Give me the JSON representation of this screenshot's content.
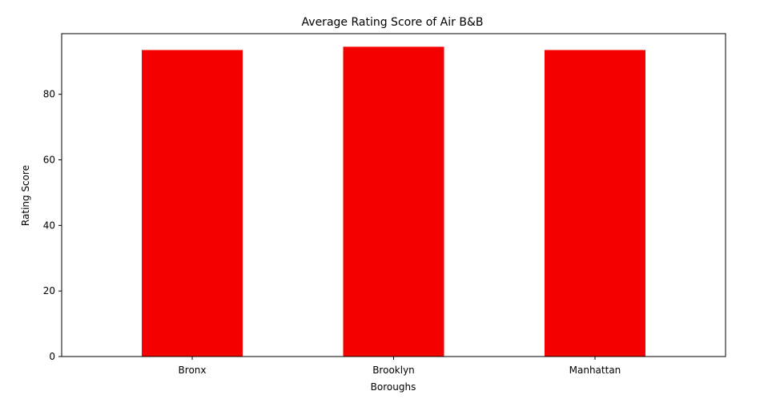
{
  "chart_data": {
    "type": "bar",
    "title": "Average Rating Score of Air B&B",
    "xlabel": "Boroughs",
    "ylabel": "Rating Score",
    "categories": [
      "Bronx",
      "Brooklyn",
      "Manhattan"
    ],
    "values": [
      93.5,
      94.5,
      93.5
    ],
    "ylim": [
      0,
      98.5
    ],
    "yticks": [
      0,
      20,
      40,
      60,
      80
    ],
    "bar_color": "#f50000",
    "grid": false,
    "legend": "none"
  }
}
